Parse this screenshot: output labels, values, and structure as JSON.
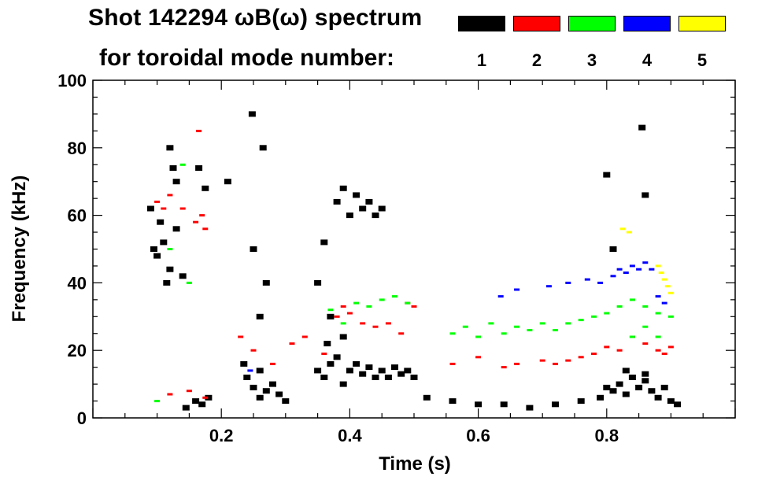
{
  "chart_data": {
    "type": "scatter",
    "title": "Shot 142294 ωB(ω) spectrum",
    "subtitle": "for toroidal mode number:",
    "xlabel": "Time (s)",
    "ylabel": "Frequency (kHz)",
    "xlim": [
      0.0,
      1.0
    ],
    "ylim": [
      0,
      100
    ],
    "xticks": [
      0.2,
      0.4,
      0.6,
      0.8
    ],
    "xtick_labels": [
      "0.2",
      "0.4",
      "0.6",
      "0.8"
    ],
    "yticks": [
      0,
      20,
      40,
      60,
      80,
      100
    ],
    "ytick_labels": [
      "0",
      "20",
      "40",
      "60",
      "80",
      "100"
    ],
    "legend": [
      {
        "label": "1",
        "color": "#000000"
      },
      {
        "label": "2",
        "color": "#ff0000"
      },
      {
        "label": "3",
        "color": "#00ff00"
      },
      {
        "label": "4",
        "color": "#0000ff"
      },
      {
        "label": "5",
        "color": "#ffff00"
      }
    ],
    "series": [
      {
        "name": "1",
        "color": "#000000",
        "points": [
          [
            0.095,
            50
          ],
          [
            0.1,
            48
          ],
          [
            0.11,
            52
          ],
          [
            0.12,
            44
          ],
          [
            0.13,
            56
          ],
          [
            0.115,
            40
          ],
          [
            0.105,
            58
          ],
          [
            0.09,
            62
          ],
          [
            0.14,
            42
          ],
          [
            0.12,
            80
          ],
          [
            0.125,
            74
          ],
          [
            0.13,
            70
          ],
          [
            0.175,
            68
          ],
          [
            0.21,
            70
          ],
          [
            0.165,
            74
          ],
          [
            0.16,
            5
          ],
          [
            0.17,
            4
          ],
          [
            0.18,
            6
          ],
          [
            0.145,
            3
          ],
          [
            0.24,
            12
          ],
          [
            0.25,
            9
          ],
          [
            0.26,
            6
          ],
          [
            0.27,
            8
          ],
          [
            0.28,
            10
          ],
          [
            0.29,
            7
          ],
          [
            0.3,
            5
          ],
          [
            0.26,
            14
          ],
          [
            0.235,
            16
          ],
          [
            0.25,
            50
          ],
          [
            0.27,
            40
          ],
          [
            0.26,
            30
          ],
          [
            0.265,
            80
          ],
          [
            0.248,
            90
          ],
          [
            0.35,
            14
          ],
          [
            0.36,
            12
          ],
          [
            0.37,
            16
          ],
          [
            0.38,
            18
          ],
          [
            0.39,
            10
          ],
          [
            0.4,
            14
          ],
          [
            0.41,
            16
          ],
          [
            0.42,
            13
          ],
          [
            0.43,
            15
          ],
          [
            0.44,
            12
          ],
          [
            0.45,
            14
          ],
          [
            0.46,
            12
          ],
          [
            0.47,
            15
          ],
          [
            0.48,
            13
          ],
          [
            0.49,
            14
          ],
          [
            0.5,
            12
          ],
          [
            0.365,
            22
          ],
          [
            0.39,
            24
          ],
          [
            0.38,
            64
          ],
          [
            0.39,
            68
          ],
          [
            0.4,
            60
          ],
          [
            0.41,
            66
          ],
          [
            0.42,
            62
          ],
          [
            0.43,
            64
          ],
          [
            0.44,
            60
          ],
          [
            0.45,
            62
          ],
          [
            0.35,
            40
          ],
          [
            0.36,
            52
          ],
          [
            0.37,
            30
          ],
          [
            0.52,
            6
          ],
          [
            0.56,
            5
          ],
          [
            0.6,
            4
          ],
          [
            0.64,
            4
          ],
          [
            0.68,
            3
          ],
          [
            0.72,
            4
          ],
          [
            0.76,
            5
          ],
          [
            0.79,
            6
          ],
          [
            0.8,
            9
          ],
          [
            0.81,
            8
          ],
          [
            0.82,
            10
          ],
          [
            0.83,
            7
          ],
          [
            0.84,
            12
          ],
          [
            0.85,
            9
          ],
          [
            0.86,
            11
          ],
          [
            0.87,
            8
          ],
          [
            0.88,
            6
          ],
          [
            0.89,
            9
          ],
          [
            0.9,
            5
          ],
          [
            0.91,
            4
          ],
          [
            0.83,
            14
          ],
          [
            0.86,
            13
          ],
          [
            0.855,
            86
          ],
          [
            0.86,
            66
          ],
          [
            0.8,
            72
          ],
          [
            0.81,
            50
          ]
        ]
      },
      {
        "name": "2",
        "color": "#ff0000",
        "points": [
          [
            0.1,
            64
          ],
          [
            0.11,
            62
          ],
          [
            0.12,
            66
          ],
          [
            0.14,
            62
          ],
          [
            0.16,
            58
          ],
          [
            0.17,
            60
          ],
          [
            0.175,
            56
          ],
          [
            0.165,
            85
          ],
          [
            0.12,
            7
          ],
          [
            0.15,
            8
          ],
          [
            0.175,
            6
          ],
          [
            0.23,
            24
          ],
          [
            0.25,
            20
          ],
          [
            0.28,
            16
          ],
          [
            0.31,
            22
          ],
          [
            0.33,
            24
          ],
          [
            0.36,
            19
          ],
          [
            0.38,
            30
          ],
          [
            0.39,
            33
          ],
          [
            0.4,
            31
          ],
          [
            0.42,
            28
          ],
          [
            0.44,
            27
          ],
          [
            0.46,
            28
          ],
          [
            0.48,
            25
          ],
          [
            0.5,
            33
          ],
          [
            0.49,
            34
          ],
          [
            0.56,
            16
          ],
          [
            0.6,
            18
          ],
          [
            0.64,
            15
          ],
          [
            0.66,
            16
          ],
          [
            0.7,
            17
          ],
          [
            0.72,
            16
          ],
          [
            0.74,
            17
          ],
          [
            0.76,
            18
          ],
          [
            0.78,
            19
          ],
          [
            0.8,
            21
          ],
          [
            0.82,
            20
          ],
          [
            0.84,
            24
          ],
          [
            0.86,
            22
          ],
          [
            0.88,
            20
          ],
          [
            0.89,
            19
          ],
          [
            0.9,
            21
          ]
        ]
      },
      {
        "name": "3",
        "color": "#00ff00",
        "points": [
          [
            0.12,
            50
          ],
          [
            0.15,
            40
          ],
          [
            0.14,
            75
          ],
          [
            0.1,
            5
          ],
          [
            0.37,
            32
          ],
          [
            0.39,
            28
          ],
          [
            0.41,
            34
          ],
          [
            0.43,
            33
          ],
          [
            0.45,
            35
          ],
          [
            0.47,
            36
          ],
          [
            0.49,
            34
          ],
          [
            0.56,
            25
          ],
          [
            0.58,
            27
          ],
          [
            0.6,
            24
          ],
          [
            0.62,
            28
          ],
          [
            0.64,
            25
          ],
          [
            0.66,
            27
          ],
          [
            0.68,
            26
          ],
          [
            0.7,
            28
          ],
          [
            0.72,
            26
          ],
          [
            0.74,
            28
          ],
          [
            0.76,
            29
          ],
          [
            0.78,
            30
          ],
          [
            0.8,
            31
          ],
          [
            0.82,
            33
          ],
          [
            0.84,
            35
          ],
          [
            0.86,
            33
          ],
          [
            0.88,
            31
          ],
          [
            0.9,
            30
          ],
          [
            0.84,
            24
          ],
          [
            0.86,
            27
          ],
          [
            0.88,
            24
          ]
        ]
      },
      {
        "name": "4",
        "color": "#0000ff",
        "points": [
          [
            0.81,
            42
          ],
          [
            0.82,
            44
          ],
          [
            0.83,
            43
          ],
          [
            0.84,
            45
          ],
          [
            0.85,
            44
          ],
          [
            0.86,
            46
          ],
          [
            0.87,
            44
          ],
          [
            0.88,
            36
          ],
          [
            0.89,
            34
          ],
          [
            0.79,
            40
          ],
          [
            0.77,
            41
          ],
          [
            0.74,
            40
          ],
          [
            0.71,
            39
          ],
          [
            0.66,
            38
          ],
          [
            0.635,
            36
          ],
          [
            0.245,
            14
          ]
        ]
      },
      {
        "name": "5",
        "color": "#ffff00",
        "points": [
          [
            0.825,
            56
          ],
          [
            0.835,
            55
          ],
          [
            0.88,
            45
          ],
          [
            0.885,
            43
          ],
          [
            0.89,
            41
          ],
          [
            0.895,
            39
          ],
          [
            0.9,
            37
          ]
        ]
      }
    ]
  }
}
